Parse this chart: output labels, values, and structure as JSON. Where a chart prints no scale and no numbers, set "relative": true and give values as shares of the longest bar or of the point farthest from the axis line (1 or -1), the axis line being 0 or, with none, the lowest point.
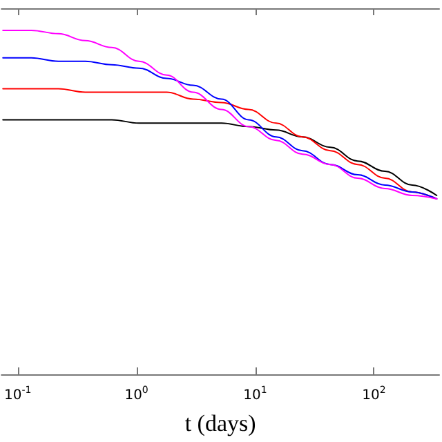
{
  "chart_data": {
    "type": "line",
    "xlabel": "t (days)",
    "log": "x",
    "relative": true,
    "grid": false,
    "marker": "none",
    "line_style": "solid",
    "x": [
      0.075,
      0.13,
      0.22,
      0.37,
      0.62,
      1.05,
      1.8,
      3,
      5.2,
      8.8,
      15,
      25,
      43,
      73,
      124,
      210,
      338
    ],
    "xlim": [
      0.073,
      355
    ],
    "xticks": [
      {
        "value": 0.1,
        "label": "10$^{-1}$"
      },
      {
        "value": 1,
        "label": "10$^{0}$"
      },
      {
        "value": 10,
        "label": "10$^{1}$"
      },
      {
        "value": 100,
        "label": "10$^{2}$"
      }
    ],
    "series": [
      {
        "color": "#000000",
        "values": [
          0.74,
          0.74,
          0.74,
          0.74,
          0.74,
          0.73,
          0.73,
          0.73,
          0.73,
          0.72,
          0.71,
          0.69,
          0.66,
          0.62,
          0.59,
          0.55,
          0.52
        ]
      },
      {
        "color": "#ff0000",
        "values": [
          0.83,
          0.83,
          0.83,
          0.82,
          0.82,
          0.82,
          0.82,
          0.8,
          0.79,
          0.77,
          0.73,
          0.69,
          0.65,
          0.61,
          0.57,
          0.53,
          0.51
        ]
      },
      {
        "color": "#0000ff",
        "values": [
          0.92,
          0.92,
          0.91,
          0.91,
          0.9,
          0.89,
          0.86,
          0.84,
          0.8,
          0.74,
          0.69,
          0.65,
          0.61,
          0.58,
          0.55,
          0.53,
          0.51
        ]
      },
      {
        "color": "#ff00ff",
        "values": [
          1.0,
          1.0,
          0.99,
          0.97,
          0.95,
          0.91,
          0.87,
          0.82,
          0.77,
          0.72,
          0.68,
          0.64,
          0.61,
          0.57,
          0.54,
          0.52,
          0.51
        ]
      }
    ]
  }
}
